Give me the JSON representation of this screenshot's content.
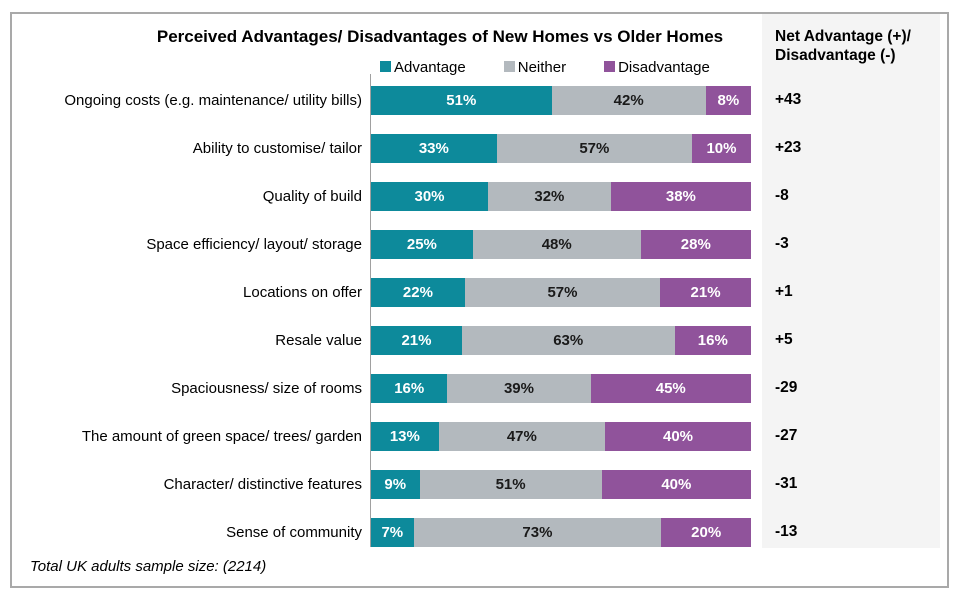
{
  "chart_data": {
    "type": "bar",
    "orientation": "horizontal",
    "stacked": true,
    "normalized_to_100": true,
    "title": "Perceived Advantages/ Disadvantages of New Homes vs Older Homes",
    "categories": [
      "Ongoing costs (e.g. maintenance/ utility bills)",
      "Ability to customise/ tailor",
      "Quality of build",
      "Space efficiency/ layout/ storage",
      "Locations on offer",
      "Resale value",
      "Spaciousness/ size of rooms",
      "The amount of green space/ trees/ garden",
      "Character/ distinctive features",
      "Sense of community"
    ],
    "series": [
      {
        "name": "Advantage",
        "color": "#0d8a9b",
        "label_color": "#ffffff",
        "values": [
          51,
          33,
          30,
          25,
          22,
          21,
          16,
          13,
          9,
          7
        ]
      },
      {
        "name": "Neither",
        "color": "#b3b9be",
        "label_color": "#1a1a1a",
        "values": [
          42,
          57,
          32,
          48,
          57,
          63,
          39,
          47,
          51,
          73
        ]
      },
      {
        "name": "Disadvantage",
        "color": "#90539b",
        "label_color": "#ffffff",
        "values": [
          8,
          10,
          38,
          28,
          21,
          16,
          45,
          40,
          40,
          20
        ]
      }
    ],
    "value_suffix": "%",
    "legend": {
      "position": "top",
      "entries": [
        "Advantage",
        "Neither",
        "Disadvantage"
      ]
    },
    "net_column": {
      "header_line1": "Net Advantage (+)/",
      "header_line2": "Disadvantage (-)",
      "values": [
        "+43",
        "+23",
        "-8",
        "-3",
        "+1",
        "+5",
        "-29",
        "-27",
        "-31",
        "-13"
      ]
    },
    "footnote": "Total UK adults sample size: (2214)"
  },
  "colors": {
    "advantage": "#0d8a9b",
    "neither": "#b3b9be",
    "disadvantage": "#90539b",
    "panel_background": "#f4f4f4",
    "frame_border": "#a9a9a9",
    "axis_line": "#a0a0a0"
  }
}
